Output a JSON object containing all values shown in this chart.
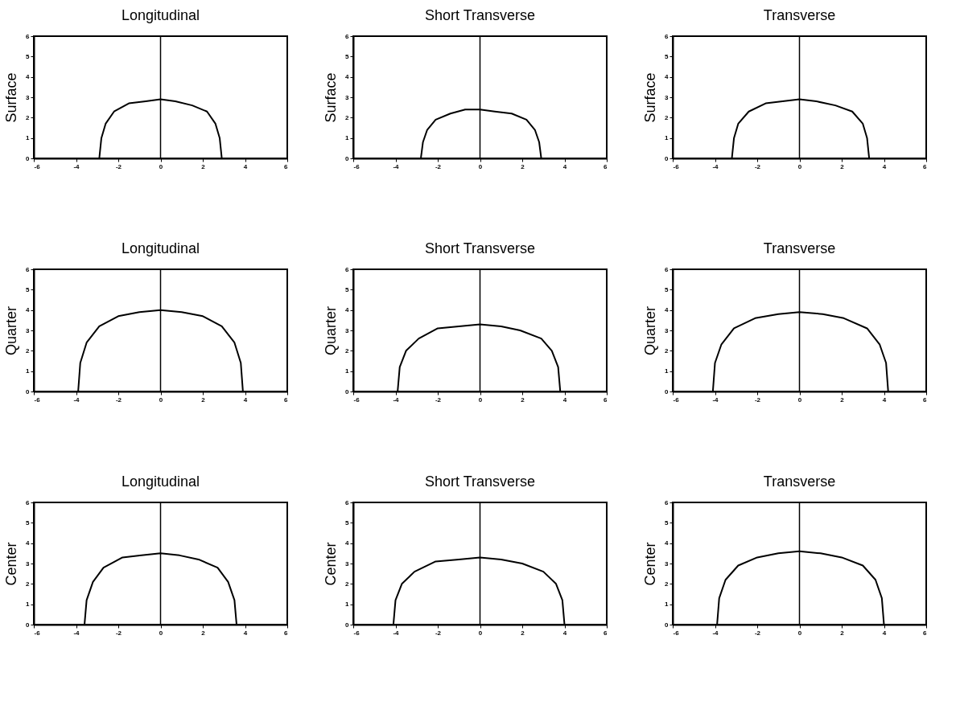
{
  "chart_data": [
    {
      "type": "line",
      "title": "Longitudinal",
      "ylabel": "Surface",
      "color": "#000000",
      "xlim": [
        -6,
        6
      ],
      "ylim": [
        0,
        6
      ],
      "xticks": [
        -6,
        -4,
        -2,
        0,
        2,
        4,
        6
      ],
      "yticks": [
        0,
        1,
        2,
        3,
        4,
        5,
        6
      ],
      "ref_lines": [
        {
          "axis": "x",
          "value": 0
        }
      ],
      "x": [
        -6,
        -2.9,
        -2.8,
        -2.6,
        -2.2,
        -1.5,
        -0.7,
        0,
        0.7,
        1.5,
        2.2,
        2.6,
        2.8,
        2.9,
        6
      ],
      "values": [
        0,
        0,
        1.0,
        1.7,
        2.3,
        2.7,
        2.8,
        2.9,
        2.8,
        2.6,
        2.3,
        1.7,
        1.0,
        0,
        0
      ]
    },
    {
      "type": "line",
      "title": "Short Transverse",
      "ylabel": "Surface",
      "color": "#000000",
      "xlim": [
        -6,
        6
      ],
      "ylim": [
        0,
        6
      ],
      "xticks": [
        -6,
        -4,
        -2,
        0,
        2,
        4,
        6
      ],
      "yticks": [
        0,
        1,
        2,
        3,
        4,
        5,
        6
      ],
      "ref_lines": [
        {
          "axis": "x",
          "value": 0
        }
      ],
      "x": [
        -6,
        -2.8,
        -2.7,
        -2.5,
        -2.1,
        -1.4,
        -0.7,
        0,
        0.7,
        1.5,
        2.2,
        2.6,
        2.8,
        2.9,
        6
      ],
      "values": [
        0,
        0,
        0.8,
        1.4,
        1.9,
        2.2,
        2.4,
        2.4,
        2.3,
        2.2,
        1.9,
        1.4,
        0.8,
        0,
        0
      ]
    },
    {
      "type": "line",
      "title": "Transverse",
      "ylabel": "Surface",
      "color": "#000000",
      "xlim": [
        -6,
        6
      ],
      "ylim": [
        0,
        6
      ],
      "xticks": [
        -6,
        -4,
        -2,
        0,
        2,
        4,
        6
      ],
      "yticks": [
        0,
        1,
        2,
        3,
        4,
        5,
        6
      ],
      "ref_lines": [
        {
          "axis": "x",
          "value": 0
        }
      ],
      "x": [
        -6,
        -3.2,
        -3.1,
        -2.9,
        -2.4,
        -1.6,
        -0.8,
        0,
        0.8,
        1.7,
        2.5,
        3.0,
        3.2,
        3.3,
        6
      ],
      "values": [
        0,
        0,
        1.0,
        1.7,
        2.3,
        2.7,
        2.8,
        2.9,
        2.8,
        2.6,
        2.3,
        1.7,
        1.0,
        0,
        0
      ]
    },
    {
      "type": "line",
      "title": "Longitudinal",
      "ylabel": "Quarter",
      "color": "#000000",
      "xlim": [
        -6,
        6
      ],
      "ylim": [
        0,
        6
      ],
      "xticks": [
        -6,
        -4,
        -2,
        0,
        2,
        4,
        6
      ],
      "yticks": [
        0,
        1,
        2,
        3,
        4,
        5,
        6
      ],
      "ref_lines": [
        {
          "axis": "x",
          "value": 0
        }
      ],
      "x": [
        -6,
        -3.9,
        -3.8,
        -3.5,
        -2.9,
        -2.0,
        -1.0,
        0,
        1.0,
        2.0,
        2.9,
        3.5,
        3.8,
        3.9,
        6
      ],
      "values": [
        0,
        0,
        1.4,
        2.4,
        3.2,
        3.7,
        3.9,
        4.0,
        3.9,
        3.7,
        3.2,
        2.4,
        1.4,
        0,
        0
      ]
    },
    {
      "type": "line",
      "title": "Short Transverse",
      "ylabel": "Quarter",
      "color": "#000000",
      "xlim": [
        -6,
        6
      ],
      "ylim": [
        0,
        6
      ],
      "xticks": [
        -6,
        -4,
        -2,
        0,
        2,
        4,
        6
      ],
      "yticks": [
        0,
        1,
        2,
        3,
        4,
        5,
        6
      ],
      "ref_lines": [
        {
          "axis": "x",
          "value": 0
        }
      ],
      "x": [
        -6,
        -3.9,
        -3.8,
        -3.5,
        -2.9,
        -2.0,
        -1.0,
        0,
        1.0,
        1.9,
        2.9,
        3.4,
        3.7,
        3.8,
        6
      ],
      "values": [
        0,
        0,
        1.2,
        2.0,
        2.6,
        3.1,
        3.2,
        3.3,
        3.2,
        3.0,
        2.6,
        2.0,
        1.2,
        0,
        0
      ]
    },
    {
      "type": "line",
      "title": "Transverse",
      "ylabel": "Quarter",
      "color": "#000000",
      "xlim": [
        -6,
        6
      ],
      "ylim": [
        0,
        6
      ],
      "xticks": [
        -6,
        -4,
        -2,
        0,
        2,
        4,
        6
      ],
      "yticks": [
        0,
        1,
        2,
        3,
        4,
        5,
        6
      ],
      "ref_lines": [
        {
          "axis": "x",
          "value": 0
        }
      ],
      "x": [
        -6,
        -4.1,
        -4.0,
        -3.7,
        -3.1,
        -2.1,
        -1.0,
        0,
        1.1,
        2.1,
        3.2,
        3.8,
        4.1,
        4.2,
        6
      ],
      "values": [
        0,
        0,
        1.4,
        2.3,
        3.1,
        3.6,
        3.8,
        3.9,
        3.8,
        3.6,
        3.1,
        2.3,
        1.4,
        0,
        0
      ]
    },
    {
      "type": "line",
      "title": "Longitudinal",
      "ylabel": "Center",
      "color": "#000000",
      "xlim": [
        -6,
        6
      ],
      "ylim": [
        0,
        6
      ],
      "xticks": [
        -6,
        -4,
        -2,
        0,
        2,
        4,
        6
      ],
      "yticks": [
        0,
        1,
        2,
        3,
        4,
        5,
        6
      ],
      "ref_lines": [
        {
          "axis": "x",
          "value": 0
        }
      ],
      "x": [
        -6,
        -3.6,
        -3.5,
        -3.2,
        -2.7,
        -1.8,
        -0.9,
        0,
        0.9,
        1.8,
        2.7,
        3.2,
        3.5,
        3.6,
        6
      ],
      "values": [
        0,
        0,
        1.2,
        2.1,
        2.8,
        3.3,
        3.4,
        3.5,
        3.4,
        3.2,
        2.8,
        2.1,
        1.2,
        0,
        0
      ]
    },
    {
      "type": "line",
      "title": "Short Transverse",
      "ylabel": "Center",
      "color": "#000000",
      "xlim": [
        -6,
        6
      ],
      "ylim": [
        0,
        6
      ],
      "xticks": [
        -6,
        -4,
        -2,
        0,
        2,
        4,
        6
      ],
      "yticks": [
        0,
        1,
        2,
        3,
        4,
        5,
        6
      ],
      "ref_lines": [
        {
          "axis": "x",
          "value": 0
        }
      ],
      "x": [
        -6,
        -4.1,
        -4.0,
        -3.7,
        -3.1,
        -2.1,
        -1.0,
        0,
        1.0,
        2.0,
        3.0,
        3.6,
        3.9,
        4.0,
        6
      ],
      "values": [
        0,
        0,
        1.2,
        2.0,
        2.6,
        3.1,
        3.2,
        3.3,
        3.2,
        3.0,
        2.6,
        2.0,
        1.2,
        0,
        0
      ]
    },
    {
      "type": "line",
      "title": "Transverse",
      "ylabel": "Center",
      "color": "#000000",
      "xlim": [
        -6,
        6
      ],
      "ylim": [
        0,
        6
      ],
      "xticks": [
        -6,
        -4,
        -2,
        0,
        2,
        4,
        6
      ],
      "yticks": [
        0,
        1,
        2,
        3,
        4,
        5,
        6
      ],
      "ref_lines": [
        {
          "axis": "x",
          "value": 0
        }
      ],
      "x": [
        -6,
        -3.9,
        -3.8,
        -3.5,
        -2.9,
        -2.0,
        -1.0,
        0,
        1.0,
        2.0,
        3.0,
        3.6,
        3.9,
        4.0,
        6
      ],
      "values": [
        0,
        0,
        1.3,
        2.2,
        2.9,
        3.3,
        3.5,
        3.6,
        3.5,
        3.3,
        2.9,
        2.2,
        1.3,
        0,
        0
      ]
    }
  ]
}
